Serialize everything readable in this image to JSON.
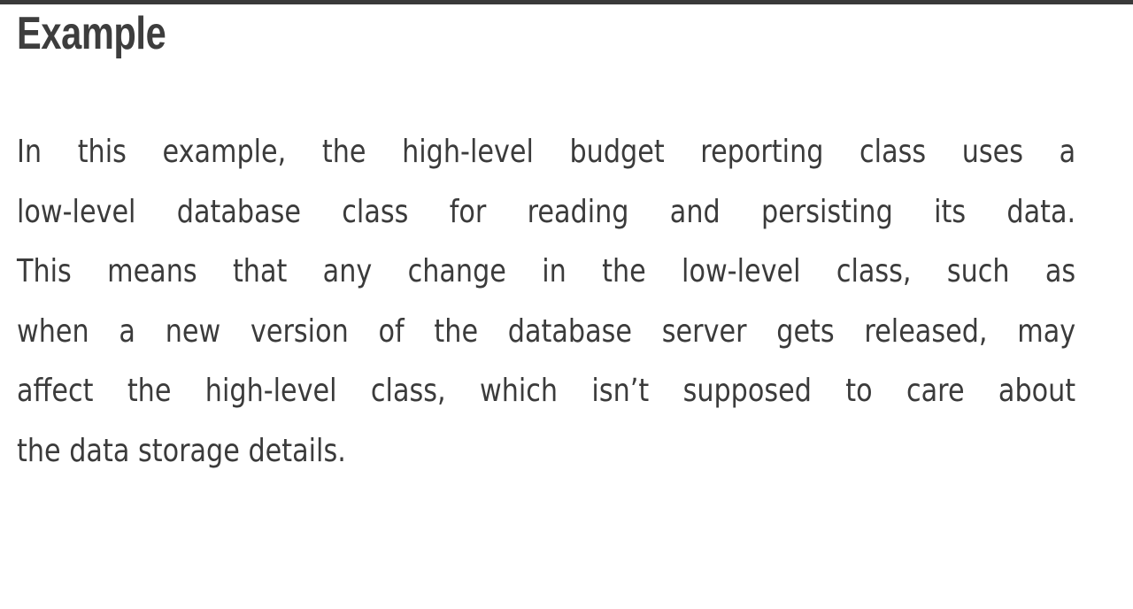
{
  "section": {
    "heading": "Example",
    "paragraph_lines": [
      "In this example, the high-level budget reporting class uses a",
      "low-level database class for reading and persisting its data.",
      "This means that any change in the low-level class, such as",
      "when a new version of the database server gets released, may",
      "affect the high-level class, which isn’t supposed to care about",
      "the data storage details."
    ]
  },
  "colors": {
    "top_bar": "#3a3a3a",
    "heading": "#3d3d3d",
    "text": "#3b3b3b",
    "background": "#ffffff"
  }
}
